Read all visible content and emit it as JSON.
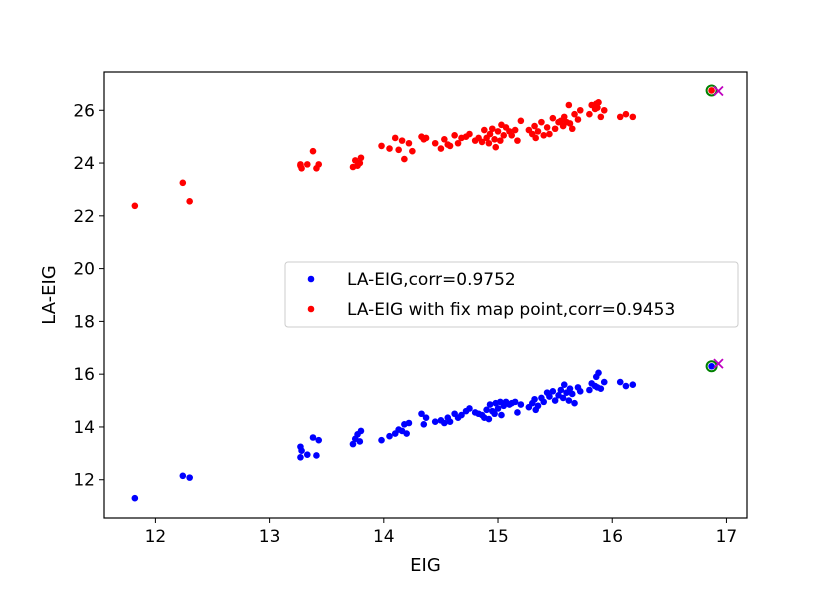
{
  "chart_data": {
    "type": "scatter",
    "xlabel": "EIG",
    "ylabel": "LA-EIG",
    "xlim": [
      11.55,
      17.18
    ],
    "ylim": [
      10.55,
      27.45
    ],
    "xticks": [
      12,
      13,
      14,
      15,
      16,
      17
    ],
    "yticks": [
      12,
      14,
      16,
      18,
      20,
      22,
      24,
      26
    ],
    "legend_position": "center-right",
    "series": [
      {
        "name": "LA-EIG,corr=0.9752",
        "color": "#0000ff",
        "points": [
          [
            11.82,
            11.3
          ],
          [
            12.24,
            12.15
          ],
          [
            12.3,
            12.08
          ],
          [
            13.27,
            13.25
          ],
          [
            13.28,
            13.1
          ],
          [
            13.27,
            12.85
          ],
          [
            13.33,
            12.95
          ],
          [
            13.38,
            13.6
          ],
          [
            13.41,
            12.92
          ],
          [
            13.43,
            13.5
          ],
          [
            13.73,
            13.35
          ],
          [
            13.75,
            13.55
          ],
          [
            13.77,
            13.72
          ],
          [
            13.79,
            13.45
          ],
          [
            13.8,
            13.85
          ],
          [
            13.98,
            13.5
          ],
          [
            14.05,
            13.65
          ],
          [
            14.1,
            13.75
          ],
          [
            14.13,
            13.9
          ],
          [
            14.16,
            13.85
          ],
          [
            14.18,
            14.1
          ],
          [
            14.22,
            14.15
          ],
          [
            14.2,
            13.75
          ],
          [
            14.33,
            14.5
          ],
          [
            14.35,
            14.1
          ],
          [
            14.37,
            14.35
          ],
          [
            14.45,
            14.2
          ],
          [
            14.5,
            14.25
          ],
          [
            14.53,
            14.15
          ],
          [
            14.56,
            14.35
          ],
          [
            14.58,
            14.2
          ],
          [
            14.62,
            14.5
          ],
          [
            14.65,
            14.35
          ],
          [
            14.68,
            14.45
          ],
          [
            14.72,
            14.6
          ],
          [
            14.75,
            14.7
          ],
          [
            14.8,
            14.55
          ],
          [
            14.83,
            14.5
          ],
          [
            14.86,
            14.45
          ],
          [
            14.88,
            14.35
          ],
          [
            14.9,
            14.65
          ],
          [
            14.92,
            14.3
          ],
          [
            14.93,
            14.85
          ],
          [
            14.95,
            14.6
          ],
          [
            14.97,
            14.5
          ],
          [
            14.98,
            14.9
          ],
          [
            15.0,
            14.7
          ],
          [
            15.02,
            14.95
          ],
          [
            15.03,
            14.45
          ],
          [
            15.05,
            14.8
          ],
          [
            15.07,
            14.95
          ],
          [
            15.1,
            14.85
          ],
          [
            15.12,
            14.9
          ],
          [
            15.15,
            14.95
          ],
          [
            15.17,
            14.55
          ],
          [
            15.2,
            14.85
          ],
          [
            15.27,
            14.75
          ],
          [
            15.3,
            14.9
          ],
          [
            15.32,
            15.05
          ],
          [
            15.33,
            14.65
          ],
          [
            15.35,
            14.8
          ],
          [
            15.38,
            15.1
          ],
          [
            15.4,
            14.95
          ],
          [
            15.43,
            15.3
          ],
          [
            15.45,
            15.15
          ],
          [
            15.48,
            15.35
          ],
          [
            15.5,
            15.0
          ],
          [
            15.53,
            15.2
          ],
          [
            15.55,
            15.4
          ],
          [
            15.57,
            15.1
          ],
          [
            15.58,
            15.6
          ],
          [
            15.6,
            15.3
          ],
          [
            15.62,
            15.0
          ],
          [
            15.63,
            15.45
          ],
          [
            15.65,
            15.25
          ],
          [
            15.67,
            14.9
          ],
          [
            15.7,
            15.5
          ],
          [
            15.72,
            15.35
          ],
          [
            15.8,
            15.4
          ],
          [
            15.82,
            15.65
          ],
          [
            15.85,
            15.55
          ],
          [
            15.86,
            15.9
          ],
          [
            15.87,
            15.5
          ],
          [
            15.88,
            16.05
          ],
          [
            15.9,
            15.45
          ],
          [
            15.93,
            15.7
          ],
          [
            16.07,
            15.7
          ],
          [
            16.12,
            15.55
          ],
          [
            16.18,
            15.6
          ],
          [
            16.87,
            16.3
          ]
        ]
      },
      {
        "name": "LA-EIG with fix map point,corr=0.9453",
        "color": "#ff0000",
        "points": [
          [
            11.82,
            22.38
          ],
          [
            12.24,
            23.25
          ],
          [
            12.3,
            22.55
          ],
          [
            13.27,
            23.95
          ],
          [
            13.28,
            23.8
          ],
          [
            13.27,
            23.9
          ],
          [
            13.33,
            23.95
          ],
          [
            13.38,
            24.45
          ],
          [
            13.41,
            23.8
          ],
          [
            13.43,
            23.95
          ],
          [
            13.73,
            23.85
          ],
          [
            13.75,
            24.1
          ],
          [
            13.77,
            23.9
          ],
          [
            13.79,
            24.0
          ],
          [
            13.8,
            24.2
          ],
          [
            13.98,
            24.65
          ],
          [
            14.05,
            24.55
          ],
          [
            14.1,
            24.95
          ],
          [
            14.13,
            24.5
          ],
          [
            14.16,
            24.85
          ],
          [
            14.18,
            24.15
          ],
          [
            14.22,
            24.75
          ],
          [
            14.25,
            24.45
          ],
          [
            14.33,
            25.0
          ],
          [
            14.35,
            24.9
          ],
          [
            14.37,
            24.95
          ],
          [
            14.45,
            24.75
          ],
          [
            14.5,
            24.55
          ],
          [
            14.53,
            24.9
          ],
          [
            14.56,
            24.7
          ],
          [
            14.58,
            24.65
          ],
          [
            14.62,
            25.05
          ],
          [
            14.65,
            24.75
          ],
          [
            14.68,
            24.95
          ],
          [
            14.72,
            25.0
          ],
          [
            14.75,
            25.1
          ],
          [
            14.8,
            24.85
          ],
          [
            14.83,
            24.95
          ],
          [
            14.86,
            24.8
          ],
          [
            14.88,
            25.25
          ],
          [
            14.9,
            24.95
          ],
          [
            14.92,
            24.75
          ],
          [
            14.93,
            25.1
          ],
          [
            14.95,
            25.3
          ],
          [
            14.97,
            24.9
          ],
          [
            14.98,
            24.6
          ],
          [
            15.0,
            25.2
          ],
          [
            15.02,
            24.85
          ],
          [
            15.03,
            25.45
          ],
          [
            15.05,
            25.05
          ],
          [
            15.07,
            25.35
          ],
          [
            15.1,
            25.2
          ],
          [
            15.12,
            25.05
          ],
          [
            15.15,
            25.25
          ],
          [
            15.17,
            24.85
          ],
          [
            15.2,
            25.6
          ],
          [
            15.27,
            25.25
          ],
          [
            15.3,
            25.1
          ],
          [
            15.32,
            25.4
          ],
          [
            15.33,
            24.95
          ],
          [
            15.35,
            25.2
          ],
          [
            15.38,
            25.55
          ],
          [
            15.4,
            25.05
          ],
          [
            15.43,
            25.35
          ],
          [
            15.45,
            25.1
          ],
          [
            15.48,
            25.7
          ],
          [
            15.5,
            25.3
          ],
          [
            15.53,
            25.55
          ],
          [
            15.55,
            25.6
          ],
          [
            15.57,
            25.4
          ],
          [
            15.58,
            25.75
          ],
          [
            15.6,
            25.55
          ],
          [
            15.62,
            26.2
          ],
          [
            15.63,
            25.5
          ],
          [
            15.65,
            25.3
          ],
          [
            15.67,
            25.85
          ],
          [
            15.7,
            25.65
          ],
          [
            15.72,
            26.0
          ],
          [
            15.8,
            25.85
          ],
          [
            15.82,
            26.2
          ],
          [
            15.85,
            26.05
          ],
          [
            15.86,
            26.25
          ],
          [
            15.87,
            26.1
          ],
          [
            15.88,
            26.3
          ],
          [
            15.9,
            25.75
          ],
          [
            15.93,
            26.0
          ],
          [
            16.07,
            25.75
          ],
          [
            16.12,
            25.85
          ],
          [
            16.18,
            25.75
          ],
          [
            16.87,
            26.75
          ]
        ]
      }
    ],
    "highlights": [
      {
        "type": "circle-marker",
        "edge_color": "#008000",
        "x": 16.87,
        "y": 16.3
      },
      {
        "type": "x-marker",
        "color": "#bf00bf",
        "x": 16.93,
        "y": 16.4
      },
      {
        "type": "circle-marker",
        "edge_color": "#008000",
        "x": 16.87,
        "y": 26.75
      },
      {
        "type": "x-marker",
        "color": "#bf00bf",
        "x": 16.93,
        "y": 26.73
      }
    ]
  }
}
